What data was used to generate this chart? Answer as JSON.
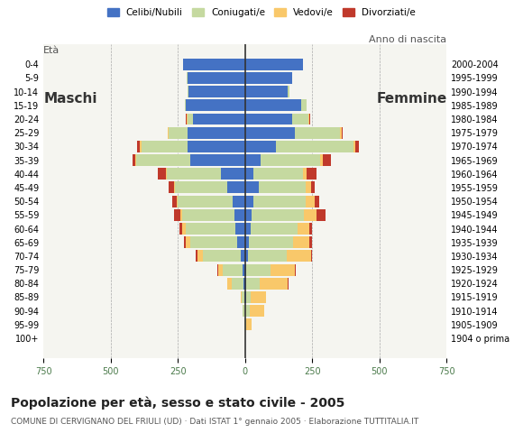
{
  "age_groups": [
    "100+",
    "95-99",
    "90-94",
    "85-89",
    "80-84",
    "75-79",
    "70-74",
    "65-69",
    "60-64",
    "55-59",
    "50-54",
    "45-49",
    "40-44",
    "35-39",
    "30-34",
    "25-29",
    "20-24",
    "15-19",
    "10-14",
    "5-9",
    "0-4"
  ],
  "birth_years": [
    "1904 o prima",
    "1905-1909",
    "1910-1914",
    "1915-1919",
    "1920-1924",
    "1925-1929",
    "1930-1934",
    "1935-1939",
    "1940-1944",
    "1945-1949",
    "1950-1954",
    "1955-1959",
    "1960-1964",
    "1965-1969",
    "1970-1974",
    "1975-1979",
    "1980-1984",
    "1985-1989",
    "1990-1994",
    "1995-1999",
    "2000-2004"
  ],
  "males": {
    "celibi": [
      0,
      0,
      0,
      2,
      5,
      8,
      17,
      30,
      35,
      40,
      45,
      65,
      90,
      205,
      215,
      215,
      195,
      220,
      210,
      215,
      230
    ],
    "coniugati": [
      0,
      2,
      8,
      10,
      45,
      75,
      140,
      175,
      185,
      195,
      205,
      195,
      200,
      200,
      170,
      70,
      20,
      5,
      2,
      2,
      2
    ],
    "vedovi": [
      0,
      0,
      2,
      5,
      15,
      15,
      20,
      15,
      15,
      5,
      5,
      5,
      5,
      5,
      5,
      2,
      2,
      0,
      0,
      0,
      0
    ],
    "divorziati": [
      0,
      0,
      0,
      0,
      2,
      5,
      5,
      8,
      10,
      25,
      15,
      18,
      30,
      10,
      10,
      2,
      2,
      0,
      0,
      0,
      0
    ]
  },
  "females": {
    "nubili": [
      0,
      0,
      2,
      5,
      5,
      5,
      10,
      15,
      20,
      25,
      30,
      50,
      30,
      60,
      115,
      185,
      175,
      210,
      160,
      175,
      215
    ],
    "coniugate": [
      0,
      5,
      15,
      15,
      50,
      90,
      145,
      165,
      175,
      195,
      195,
      175,
      185,
      220,
      290,
      170,
      60,
      20,
      5,
      2,
      2
    ],
    "vedove": [
      0,
      20,
      55,
      60,
      105,
      90,
      90,
      60,
      45,
      45,
      35,
      20,
      15,
      10,
      5,
      5,
      5,
      0,
      0,
      0,
      0
    ],
    "divorziate": [
      0,
      0,
      0,
      0,
      2,
      5,
      5,
      10,
      10,
      35,
      15,
      15,
      35,
      30,
      15,
      5,
      2,
      0,
      0,
      0,
      0
    ]
  },
  "colors": {
    "celibi": "#4472c4",
    "coniugati": "#c5d9a0",
    "vedovi": "#f9c86a",
    "divorziati": "#c0392b"
  },
  "xlim": 750,
  "title": "Popolazione per età, sesso e stato civile - 2005",
  "subtitle": "COMUNE DI CERVIGNANO DEL FRIULI (UD) · Dati ISTAT 1° gennaio 2005 · Elaborazione TUTTITALIA.IT",
  "legend_labels": [
    "Celibi/Nubili",
    "Coniugati/e",
    "Vedovi/e",
    "Divorziati/e"
  ],
  "eta_label": "Età",
  "anno_label": "Anno di nascita",
  "maschi_label": "Maschi",
  "femmine_label": "Femmine",
  "bg_color": "#ffffff",
  "plot_bg_color": "#f5f5f0"
}
